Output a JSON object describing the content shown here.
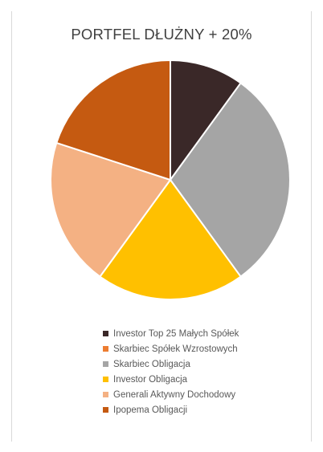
{
  "chart_data": {
    "type": "pie",
    "title": "PORTFEL DŁUŻNY + 20%",
    "categories": [
      "Investor Top 25 Małych Spółek",
      "Skarbiec Spółek Wzrostowych",
      "Skarbiec Obligacja",
      "Investor Obligacja",
      "Generali Aktywny Dochodowy",
      "Ipopema Obligacji"
    ],
    "values": [
      10,
      0,
      30,
      20,
      20,
      20
    ],
    "colors": [
      "#3a2828",
      "#ed7d31",
      "#a5a5a5",
      "#ffc000",
      "#f4b183",
      "#c55a11"
    ],
    "start_angle_deg": 0,
    "direction": "clockwise",
    "legend_position": "bottom"
  }
}
